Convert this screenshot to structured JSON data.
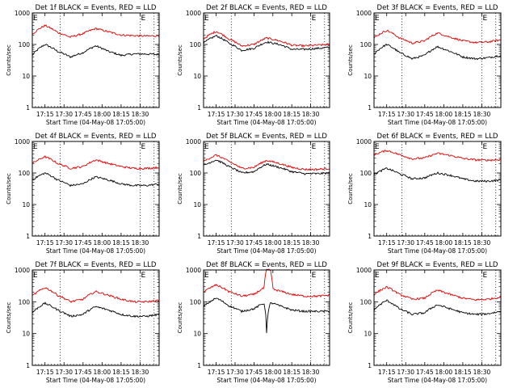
{
  "layout": {
    "rows": 3,
    "cols": 3
  },
  "colors": {
    "events": "#000000",
    "lld": "#e00000",
    "axes": "#000000"
  },
  "chart_data": [
    {
      "type": "line",
      "title": "Det 1f  BLACK = Events, RED = LLD",
      "xlabel": "Start Time (04-May-08 17:05:00)",
      "ylabel": "Counts/sec",
      "x_tick_labels": [
        "17:15",
        "17:30",
        "17:45",
        "18:00",
        "18:15",
        "18:30"
      ],
      "y_tick_labels": [
        "1",
        "10",
        "100",
        "1000"
      ],
      "y_scale": "log",
      "ylim": [
        1,
        1000
      ],
      "xlim_minutes": [
        0,
        100
      ],
      "x_tick_minutes": [
        10,
        25,
        40,
        55,
        70,
        85
      ],
      "markers": [
        {
          "label": "E",
          "minute": 0
        },
        {
          "label": "E",
          "minute": 85
        }
      ],
      "dotted_lines_minutes": [
        22,
        85,
        96
      ],
      "series": [
        {
          "name": "Events",
          "x_minutes": [
            0,
            10,
            20,
            30,
            40,
            50,
            60,
            70,
            80,
            90,
            100
          ],
          "y": [
            45,
            100,
            60,
            40,
            55,
            90,
            60,
            45,
            50,
            50,
            48
          ]
        },
        {
          "name": "LLD",
          "x_minutes": [
            0,
            10,
            20,
            30,
            40,
            50,
            60,
            70,
            80,
            90,
            100
          ],
          "y": [
            210,
            400,
            240,
            170,
            220,
            320,
            250,
            200,
            190,
            185,
            190
          ]
        }
      ]
    },
    {
      "type": "line",
      "title": "Det 2f  BLACK = Events, RED = LLD",
      "xlabel": "Start Time (04-May-08 17:05:00)",
      "ylabel": "Counts/sec",
      "x_tick_labels": [
        "17:15",
        "17:30",
        "17:45",
        "18:00",
        "18:15",
        "18:30"
      ],
      "y_tick_labels": [
        "1",
        "10",
        "100",
        "1000"
      ],
      "y_scale": "log",
      "ylim": [
        1,
        1000
      ],
      "xlim_minutes": [
        0,
        100
      ],
      "x_tick_minutes": [
        10,
        25,
        40,
        55,
        70,
        85
      ],
      "markers": [
        {
          "label": "E",
          "minute": 0
        },
        {
          "label": "E",
          "minute": 85
        }
      ],
      "dotted_lines_minutes": [
        22,
        85,
        96
      ],
      "series": [
        {
          "name": "Events",
          "x_minutes": [
            0,
            10,
            20,
            30,
            40,
            50,
            60,
            70,
            80,
            90,
            100
          ],
          "y": [
            110,
            190,
            110,
            65,
            75,
            120,
            100,
            70,
            70,
            75,
            80
          ]
        },
        {
          "name": "LLD",
          "x_minutes": [
            0,
            10,
            20,
            30,
            40,
            50,
            60,
            70,
            80,
            90,
            100
          ],
          "y": [
            150,
            260,
            150,
            90,
            100,
            160,
            130,
            95,
            90,
            95,
            100
          ]
        }
      ]
    },
    {
      "type": "line",
      "title": "Det 3f  BLACK = Events, RED = LLD",
      "xlabel": "Start Time (04-May-08 17:05:00)",
      "ylabel": "Counts/sec",
      "x_tick_labels": [
        "17:15",
        "17:30",
        "17:45",
        "18:00",
        "18:15",
        "18:30"
      ],
      "y_tick_labels": [
        "1",
        "10",
        "100",
        "1000"
      ],
      "y_scale": "log",
      "ylim": [
        1,
        1000
      ],
      "xlim_minutes": [
        0,
        100
      ],
      "x_tick_minutes": [
        10,
        25,
        40,
        55,
        70,
        85
      ],
      "markers": [
        {
          "label": "E",
          "minute": 0
        },
        {
          "label": "E",
          "minute": 85
        }
      ],
      "dotted_lines_minutes": [
        22,
        85,
        96
      ],
      "series": [
        {
          "name": "Events",
          "x_minutes": [
            0,
            10,
            20,
            30,
            40,
            50,
            60,
            70,
            80,
            90,
            100
          ],
          "y": [
            50,
            100,
            55,
            35,
            45,
            85,
            60,
            40,
            35,
            38,
            45
          ]
        },
        {
          "name": "LLD",
          "x_minutes": [
            0,
            10,
            20,
            30,
            40,
            50,
            60,
            70,
            80,
            90,
            100
          ],
          "y": [
            160,
            280,
            160,
            110,
            130,
            230,
            170,
            130,
            115,
            120,
            140
          ]
        }
      ]
    },
    {
      "type": "line",
      "title": "Det 4f  BLACK = Events, RED = LLD",
      "xlabel": "Start Time (04-May-08 17:05:00)",
      "ylabel": "Counts/sec",
      "x_tick_labels": [
        "17:15",
        "17:30",
        "17:45",
        "18:00",
        "18:15",
        "18:30"
      ],
      "y_tick_labels": [
        "1",
        "10",
        "100",
        "1000"
      ],
      "y_scale": "log",
      "ylim": [
        1,
        1000
      ],
      "xlim_minutes": [
        0,
        100
      ],
      "x_tick_minutes": [
        10,
        25,
        40,
        55,
        70,
        85
      ],
      "markers": [
        {
          "label": "E",
          "minute": 0
        },
        {
          "label": "E",
          "minute": 85
        }
      ],
      "dotted_lines_minutes": [
        22,
        85,
        96
      ],
      "series": [
        {
          "name": "Events",
          "x_minutes": [
            0,
            10,
            20,
            30,
            40,
            50,
            60,
            70,
            80,
            90,
            100
          ],
          "y": [
            60,
            100,
            60,
            40,
            45,
            75,
            60,
            45,
            40,
            40,
            45
          ]
        },
        {
          "name": "LLD",
          "x_minutes": [
            0,
            10,
            20,
            30,
            40,
            50,
            60,
            70,
            80,
            90,
            100
          ],
          "y": [
            200,
            330,
            200,
            140,
            160,
            260,
            200,
            160,
            140,
            140,
            150
          ]
        }
      ]
    },
    {
      "type": "line",
      "title": "Det 5f  BLACK = Events, RED = LLD",
      "xlabel": "Start Time (04-May-08 17:05:00)",
      "ylabel": "Counts/sec",
      "x_tick_labels": [
        "17:15",
        "17:30",
        "17:45",
        "18:00",
        "18:15",
        "18:30"
      ],
      "y_tick_labels": [
        "1",
        "10",
        "100",
        "1000"
      ],
      "y_scale": "log",
      "ylim": [
        1,
        1000
      ],
      "xlim_minutes": [
        0,
        100
      ],
      "x_tick_minutes": [
        10,
        25,
        40,
        55,
        70,
        85
      ],
      "markers": [
        {
          "label": "E",
          "minute": 0
        },
        {
          "label": "E",
          "minute": 85
        }
      ],
      "dotted_lines_minutes": [
        22,
        85,
        96
      ],
      "series": [
        {
          "name": "Events",
          "x_minutes": [
            0,
            10,
            20,
            30,
            40,
            50,
            60,
            70,
            80,
            90,
            100
          ],
          "y": [
            170,
            260,
            160,
            100,
            110,
            190,
            150,
            110,
            95,
            95,
            100
          ]
        },
        {
          "name": "LLD",
          "x_minutes": [
            0,
            10,
            20,
            30,
            40,
            50,
            60,
            70,
            80,
            90,
            100
          ],
          "y": [
            230,
            370,
            230,
            140,
            150,
            250,
            200,
            150,
            130,
            130,
            140
          ]
        }
      ]
    },
    {
      "type": "line",
      "title": "Det 6f  BLACK = Events, RED = LLD",
      "xlabel": "Start Time (04-May-08 17:05:00)",
      "ylabel": "Counts/sec",
      "x_tick_labels": [
        "17:15",
        "17:30",
        "17:45",
        "18:00",
        "18:15",
        "18:30"
      ],
      "y_tick_labels": [
        "1",
        "10",
        "100",
        "1000"
      ],
      "y_scale": "log",
      "ylim": [
        1,
        1000
      ],
      "xlim_minutes": [
        0,
        100
      ],
      "x_tick_minutes": [
        10,
        25,
        40,
        55,
        70,
        85
      ],
      "markers": [
        {
          "label": "E",
          "minute": 0
        },
        {
          "label": "E",
          "minute": 85
        }
      ],
      "dotted_lines_minutes": [
        22,
        85,
        96
      ],
      "series": [
        {
          "name": "Events",
          "x_minutes": [
            0,
            10,
            20,
            30,
            40,
            50,
            60,
            70,
            80,
            90,
            100
          ],
          "y": [
            90,
            140,
            95,
            65,
            70,
            100,
            85,
            65,
            55,
            55,
            60
          ]
        },
        {
          "name": "LLD",
          "x_minutes": [
            0,
            10,
            20,
            30,
            40,
            50,
            60,
            70,
            80,
            90,
            100
          ],
          "y": [
            380,
            520,
            380,
            280,
            300,
            420,
            360,
            290,
            260,
            255,
            265
          ]
        }
      ]
    },
    {
      "type": "line",
      "title": "Det 7f  BLACK = Events, RED = LLD",
      "xlabel": "Start Time (04-May-08 17:05:00)",
      "ylabel": "Counts/sec",
      "x_tick_labels": [
        "17:15",
        "17:30",
        "17:45",
        "18:00",
        "18:15",
        "18:30"
      ],
      "y_tick_labels": [
        "1",
        "10",
        "100",
        "1000"
      ],
      "y_scale": "log",
      "ylim": [
        1,
        1000
      ],
      "xlim_minutes": [
        0,
        100
      ],
      "x_tick_minutes": [
        10,
        25,
        40,
        55,
        70,
        85
      ],
      "markers": [
        {
          "label": "E",
          "minute": 0
        },
        {
          "label": "E",
          "minute": 85
        }
      ],
      "dotted_lines_minutes": [
        22,
        85,
        96
      ],
      "series": [
        {
          "name": "Events",
          "x_minutes": [
            0,
            10,
            20,
            30,
            40,
            50,
            60,
            70,
            80,
            90,
            100
          ],
          "y": [
            45,
            90,
            55,
            35,
            40,
            70,
            55,
            40,
            35,
            35,
            40
          ]
        },
        {
          "name": "LLD",
          "x_minutes": [
            0,
            10,
            20,
            30,
            40,
            50,
            60,
            70,
            80,
            90,
            100
          ],
          "y": [
            150,
            280,
            160,
            100,
            120,
            210,
            160,
            120,
            100,
            100,
            110
          ]
        }
      ]
    },
    {
      "type": "line",
      "title": "Det 8f  BLACK = Events, RED = LLD",
      "xlabel": "Start Time (04-May-08 17:05:00)",
      "ylabel": "Counts/sec",
      "x_tick_labels": [
        "17:15",
        "17:30",
        "17:45",
        "18:00",
        "18:15",
        "18:30"
      ],
      "y_tick_labels": [
        "1",
        "10",
        "100",
        "1000"
      ],
      "y_scale": "log",
      "ylim": [
        1,
        1000
      ],
      "xlim_minutes": [
        0,
        100
      ],
      "x_tick_minutes": [
        10,
        25,
        40,
        55,
        70,
        85
      ],
      "markers": [
        {
          "label": "E",
          "minute": 0
        },
        {
          "label": "E",
          "minute": 85
        }
      ],
      "dotted_lines_minutes": [
        22,
        85,
        96
      ],
      "series": [
        {
          "name": "Events",
          "x_minutes": [
            0,
            10,
            20,
            30,
            40,
            48,
            50,
            53,
            55,
            60,
            70,
            80,
            90,
            100
          ],
          "y": [
            70,
            130,
            75,
            50,
            60,
            90,
            11,
            90,
            90,
            75,
            55,
            50,
            50,
            50
          ]
        },
        {
          "name": "LLD",
          "x_minutes": [
            0,
            10,
            20,
            30,
            40,
            48,
            50,
            53,
            55,
            60,
            70,
            80,
            90,
            100
          ],
          "y": [
            200,
            340,
            210,
            150,
            170,
            270,
            1000,
            1000,
            250,
            220,
            170,
            150,
            150,
            160
          ]
        }
      ]
    },
    {
      "type": "line",
      "title": "Det 9f  BLACK = Events, RED = LLD",
      "xlabel": "Start Time (04-May-08 17:05:00)",
      "ylabel": "Counts/sec",
      "x_tick_labels": [
        "17:15",
        "17:30",
        "17:45",
        "18:00",
        "18:15",
        "18:30"
      ],
      "y_tick_labels": [
        "1",
        "10",
        "100",
        "1000"
      ],
      "y_scale": "log",
      "ylim": [
        1,
        1000
      ],
      "xlim_minutes": [
        0,
        100
      ],
      "x_tick_minutes": [
        10,
        25,
        40,
        55,
        70,
        85
      ],
      "markers": [
        {
          "label": "E",
          "minute": 0
        },
        {
          "label": "E",
          "minute": 85
        }
      ],
      "dotted_lines_minutes": [
        22,
        85,
        96
      ],
      "series": [
        {
          "name": "Events",
          "x_minutes": [
            0,
            10,
            20,
            30,
            40,
            50,
            60,
            70,
            80,
            90,
            100
          ],
          "y": [
            55,
            110,
            60,
            40,
            45,
            80,
            60,
            45,
            40,
            42,
            50
          ]
        },
        {
          "name": "LLD",
          "x_minutes": [
            0,
            10,
            20,
            30,
            40,
            50,
            60,
            70,
            80,
            90,
            100
          ],
          "y": [
            170,
            290,
            170,
            120,
            130,
            230,
            170,
            130,
            115,
            120,
            140
          ]
        }
      ]
    }
  ]
}
